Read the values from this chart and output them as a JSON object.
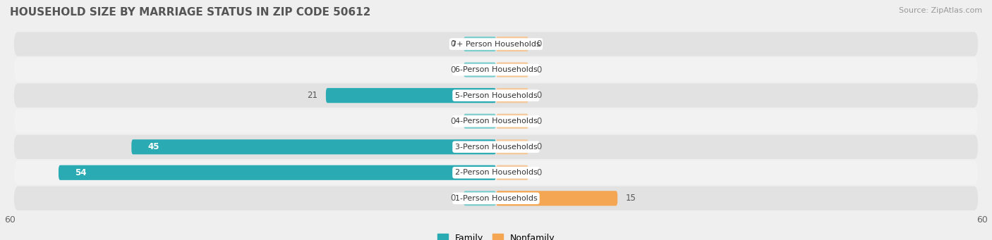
{
  "title": "HOUSEHOLD SIZE BY MARRIAGE STATUS IN ZIP CODE 50612",
  "source": "Source: ZipAtlas.com",
  "categories": [
    "7+ Person Households",
    "6-Person Households",
    "5-Person Households",
    "4-Person Households",
    "3-Person Households",
    "2-Person Households",
    "1-Person Households"
  ],
  "family_values": [
    0,
    0,
    21,
    0,
    45,
    54,
    0
  ],
  "nonfamily_values": [
    0,
    0,
    0,
    0,
    0,
    0,
    15
  ],
  "family_color_light": "#7ecece",
  "family_color_dark": "#2aabb4",
  "nonfamily_color_light": "#f5c89a",
  "nonfamily_color_dark": "#f5a652",
  "xlim": 60,
  "bar_height": 0.58,
  "bg_color": "#efefef",
  "row_colors": [
    "#e2e2e2",
    "#f2f2f2"
  ],
  "title_fontsize": 11,
  "source_fontsize": 8,
  "tick_fontsize": 9,
  "label_fontsize": 8,
  "bar_label_fontsize": 8.5
}
